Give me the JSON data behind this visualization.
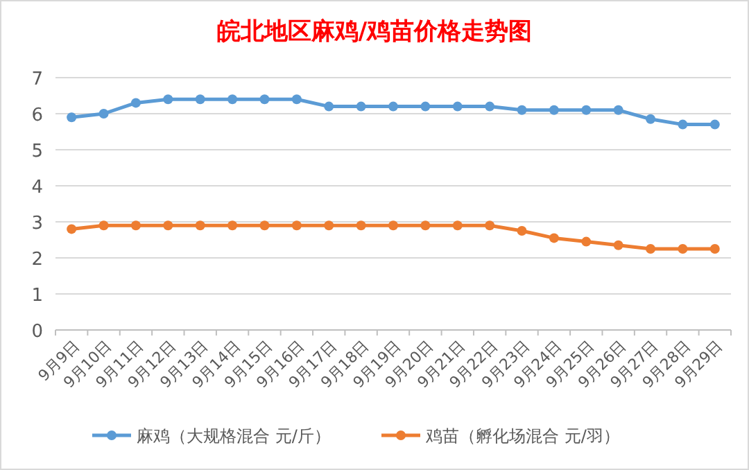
{
  "chart_data": {
    "type": "line",
    "title": "皖北地区麻鸡/鸡苗价格走势图",
    "categories": [
      "9月9日",
      "9月10日",
      "9月11日",
      "9月12日",
      "9月13日",
      "9月14日",
      "9月15日",
      "9月16日",
      "9月17日",
      "9月18日",
      "9月19日",
      "9月20日",
      "9月21日",
      "9月22日",
      "9月23日",
      "9月24日",
      "9月25日",
      "9月26日",
      "9月27日",
      "9月28日",
      "9月29日"
    ],
    "series": [
      {
        "name": "麻鸡（大规格混合 元/斤）",
        "color": "#5b9bd5",
        "values": [
          5.9,
          6.0,
          6.3,
          6.4,
          6.4,
          6.4,
          6.4,
          6.4,
          6.2,
          6.2,
          6.2,
          6.2,
          6.2,
          6.2,
          6.1,
          6.1,
          6.1,
          6.1,
          5.85,
          5.7,
          5.7
        ]
      },
      {
        "name": "鸡苗（孵化场混合 元/羽）",
        "color": "#ed7d31",
        "values": [
          2.8,
          2.9,
          2.9,
          2.9,
          2.9,
          2.9,
          2.9,
          2.9,
          2.9,
          2.9,
          2.9,
          2.9,
          2.9,
          2.9,
          2.75,
          2.55,
          2.45,
          2.35,
          2.25,
          2.25,
          2.25
        ]
      }
    ],
    "ylim": [
      0,
      7
    ],
    "yticks": [
      0,
      1,
      2,
      3,
      4,
      5,
      6,
      7
    ],
    "grid": "y",
    "legend": "bottom",
    "marker": "circle",
    "line_style": "solid"
  }
}
